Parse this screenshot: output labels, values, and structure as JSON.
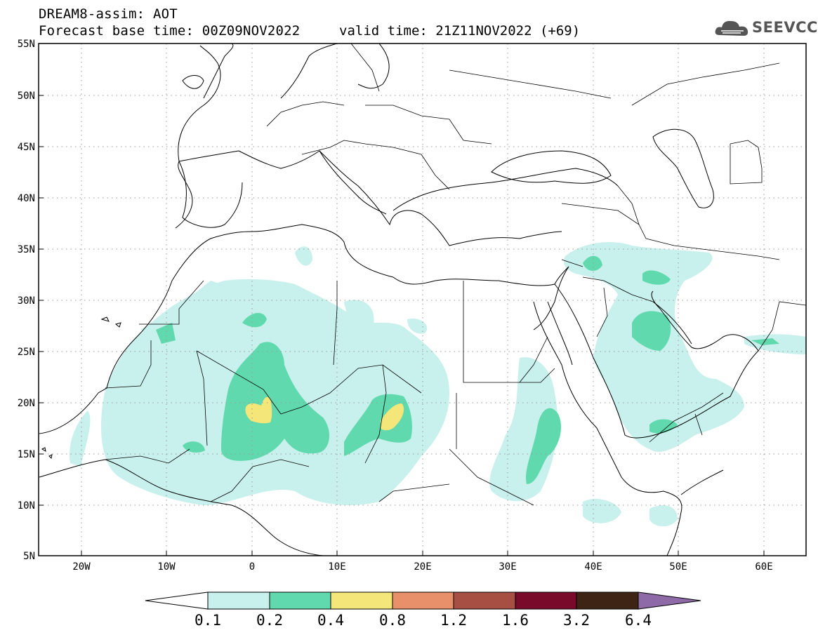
{
  "header": {
    "title": "DREAM8-assim: AOT",
    "base_time": "Forecast base time: 00Z09NOV2022",
    "valid_time": "valid time: 21Z11NOV2022 (+69)",
    "logo_text": "SEEVCCC"
  },
  "map": {
    "lat_labels": [
      "55N",
      "50N",
      "45N",
      "40N",
      "35N",
      "30N",
      "25N",
      "20N",
      "15N",
      "10N",
      "5N"
    ],
    "lon_labels": [
      "20W",
      "10W",
      "0",
      "10E",
      "20E",
      "30E",
      "40E",
      "50E",
      "60E"
    ],
    "lon_range": [
      -25,
      65
    ],
    "lat_range": [
      5,
      55
    ],
    "grid": "dotted",
    "variable": "AOT"
  },
  "colorbar": {
    "levels": [
      "0.1",
      "0.2",
      "0.4",
      "0.8",
      "1.2",
      "1.6",
      "3.2",
      "6.4"
    ],
    "colors": [
      "#c8f0ec",
      "#5fd9ad",
      "#f5e67a",
      "#e8906a",
      "#a84f43",
      "#7a0a2a",
      "#3d2414",
      "#8e6aa8"
    ],
    "under_color": "#ffffff"
  },
  "colors": {
    "level1": "#c8f0ec",
    "level2": "#5fd9ad",
    "level3": "#f5e67a",
    "border": "#000000"
  }
}
